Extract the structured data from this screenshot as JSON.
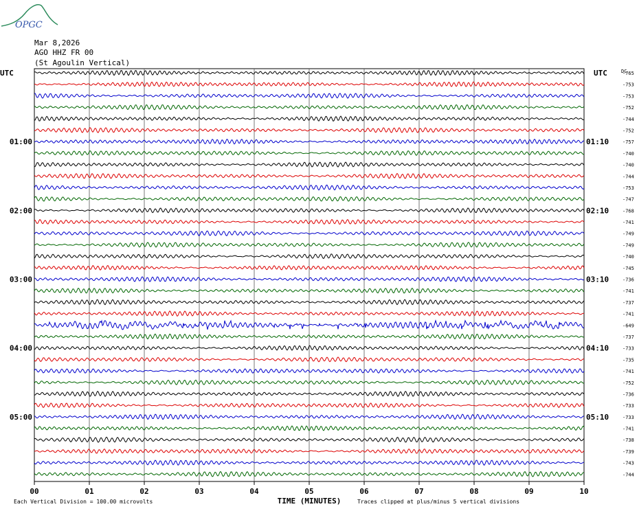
{
  "logo_text": "OPGC",
  "header": {
    "date": "Mar 8,2026",
    "channel": "AGO HHZ FR 00",
    "station": "(St Agoulin Vertical)"
  },
  "colors": [
    "#000000",
    "#dd0000",
    "#0000cc",
    "#006600"
  ],
  "chart_data": {
    "type": "line",
    "title": "Mar 8,2026",
    "xlabel": "TIME (MINUTES)",
    "ylabel": "",
    "xlim": [
      0,
      10
    ],
    "x_ticks": [
      "00",
      "01",
      "02",
      "03",
      "04",
      "05",
      "06",
      "07",
      "08",
      "09",
      "10"
    ],
    "grid": true,
    "left_axis_title": "UTC",
    "right_axis_title": "UTC",
    "dc_header": "DC",
    "left_hour_labels": [
      {
        "row": 6,
        "label": "01:00"
      },
      {
        "row": 12,
        "label": "02:00"
      },
      {
        "row": 18,
        "label": "03:00"
      },
      {
        "row": 24,
        "label": "04:00"
      },
      {
        "row": 30,
        "label": "05:00"
      }
    ],
    "right_hour_labels": [
      {
        "row": 6,
        "label": "01:10"
      },
      {
        "row": 12,
        "label": "02:10"
      },
      {
        "row": 18,
        "label": "03:10"
      },
      {
        "row": 24,
        "label": "04:10"
      },
      {
        "row": 30,
        "label": "05:10"
      }
    ],
    "dc_offsets": [
      -765,
      -753,
      -753,
      -752,
      -744,
      -752,
      -757,
      -740,
      -740,
      -744,
      -753,
      -747,
      -768,
      -741,
      -749,
      -749,
      -740,
      -745,
      -736,
      -741,
      -737,
      -741,
      -649,
      -737,
      -733,
      -735,
      -741,
      -752,
      -736,
      -733,
      -733,
      -741,
      -738,
      -739,
      -743,
      -744
    ],
    "trace_count": 36,
    "event_rows": [
      22
    ],
    "footer_left": "Each Vertical Division =  100.00 microvolts",
    "footer_right": "Traces clipped at plus/minus 5 vertical divisions"
  }
}
